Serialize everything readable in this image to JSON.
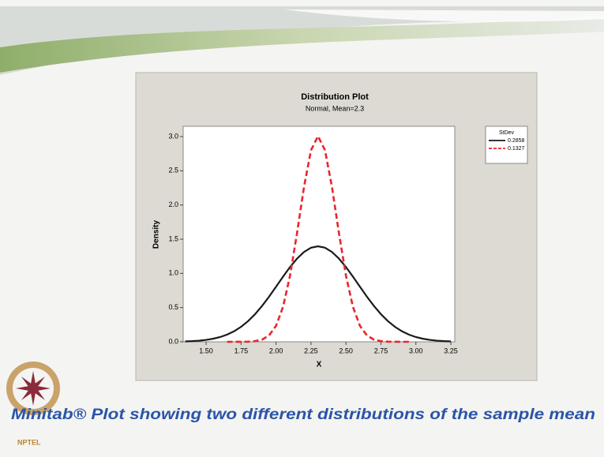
{
  "chart_data": {
    "type": "line",
    "title": "Distribution Plot",
    "subtitle": "Normal, Mean=2.3",
    "xlabel": "X",
    "ylabel": "Density",
    "legend_title": "StDev",
    "legend": "upper right",
    "x": [
      1.35,
      1.4,
      1.45,
      1.5,
      1.55,
      1.6,
      1.65,
      1.7,
      1.75,
      1.8,
      1.85,
      1.9,
      1.95,
      2.0,
      2.05,
      2.1,
      2.15,
      2.2,
      2.25,
      2.3,
      2.35,
      2.4,
      2.45,
      2.5,
      2.55,
      2.6,
      2.65,
      2.7,
      2.75,
      2.8,
      2.85,
      2.9,
      2.95,
      3.0,
      3.05,
      3.1,
      3.15,
      3.2,
      3.25
    ],
    "series": [
      {
        "name": "0.2858",
        "color": "#1a1a1a",
        "dash": false,
        "values": [
          0.0055,
          0.0098,
          0.0168,
          0.0278,
          0.0446,
          0.0695,
          0.105,
          0.154,
          0.219,
          0.302,
          0.404,
          0.524,
          0.659,
          0.805,
          0.952,
          1.093,
          1.216,
          1.313,
          1.375,
          1.396,
          1.375,
          1.313,
          1.216,
          1.093,
          0.952,
          0.805,
          0.659,
          0.524,
          0.404,
          0.302,
          0.219,
          0.154,
          0.105,
          0.0695,
          0.0446,
          0.0278,
          0.0168,
          0.0098,
          0.0055
        ]
      },
      {
        "name": "0.1327",
        "color": "#e8262b",
        "dash": true,
        "values": [
          null,
          null,
          null,
          null,
          null,
          null,
          0,
          0.0001,
          0.0006,
          0.0025,
          0.0096,
          0.032,
          0.093,
          0.233,
          0.51,
          0.966,
          1.587,
          2.263,
          2.8,
          3.006,
          2.8,
          2.263,
          1.587,
          0.966,
          0.51,
          0.233,
          0.093,
          0.032,
          0.0096,
          0.0025,
          0.0006,
          0.0001,
          0,
          null,
          null,
          null,
          null,
          null,
          null
        ]
      }
    ],
    "xlim": [
      1.336,
      3.278
    ],
    "xticks": [
      {
        "value": 1.5,
        "label": "1.50"
      },
      1.75,
      {
        "value": 2,
        "label": "2.00"
      },
      2.25,
      {
        "value": 2.5,
        "label": "2.50"
      },
      2.75,
      {
        "value": 3,
        "label": "3.00"
      },
      3.25
    ],
    "ylim": [
      0,
      3.15
    ],
    "yticks": [
      {
        "value": 0,
        "label": "0.0"
      },
      0.5,
      {
        "value": 1,
        "label": "1.0"
      },
      1.5,
      {
        "value": 2,
        "label": "2.0"
      },
      2.5,
      {
        "value": 3,
        "label": "3.0"
      }
    ],
    "grid": false
  },
  "caption": "Minitab® Plot showing two different distributions of the sample mean",
  "logo": "NPTEL"
}
